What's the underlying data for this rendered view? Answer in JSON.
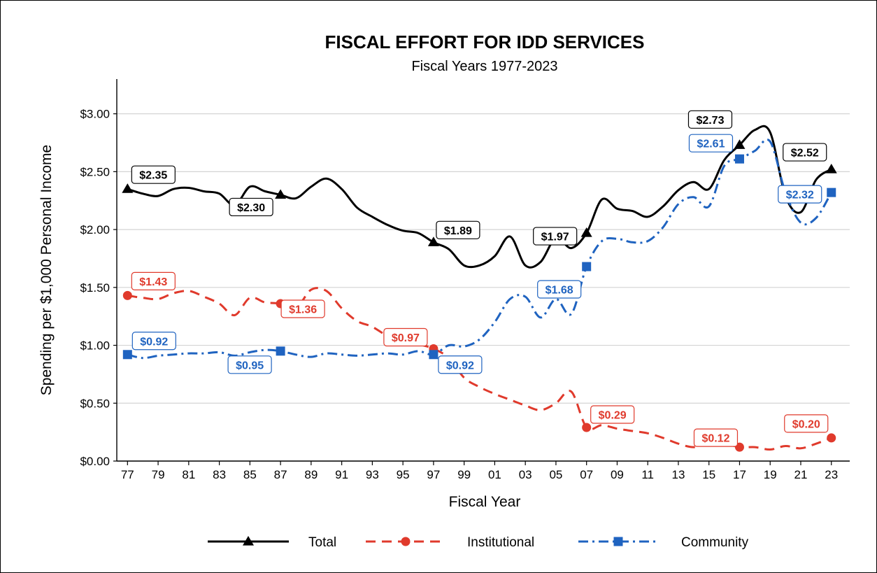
{
  "chart_data": {
    "type": "line",
    "title": "FISCAL EFFORT FOR IDD SERVICES",
    "subtitle": "Fiscal Years 1977-2023",
    "xlabel": "Fiscal Year",
    "ylabel": "Spending per $1,000 Personal Income",
    "xlim": [
      1976.3,
      2024.2
    ],
    "ylim": [
      0,
      3.3
    ],
    "x_ticks": [
      1977,
      1979,
      1981,
      1983,
      1985,
      1987,
      1989,
      1991,
      1993,
      1995,
      1997,
      1999,
      2001,
      2003,
      2005,
      2007,
      2009,
      2011,
      2013,
      2015,
      2017,
      2019,
      2021,
      2023
    ],
    "x_tick_labels": [
      "77",
      "79",
      "81",
      "83",
      "85",
      "87",
      "89",
      "91",
      "93",
      "95",
      "97",
      "99",
      "01",
      "03",
      "05",
      "07",
      "09",
      "11",
      "13",
      "15",
      "17",
      "19",
      "21",
      "23"
    ],
    "y_ticks": [
      0,
      0.5,
      1,
      1.5,
      2,
      2.5,
      3
    ],
    "y_tick_labels": [
      "$0.00",
      "$0.50",
      "$1.00",
      "$1.50",
      "$2.00",
      "$2.50",
      "$3.00"
    ],
    "grid": "horizontal",
    "legend_position": "bottom",
    "x": [
      1977,
      1978,
      1979,
      1980,
      1981,
      1982,
      1983,
      1984,
      1985,
      1986,
      1987,
      1988,
      1989,
      1990,
      1991,
      1992,
      1993,
      1994,
      1995,
      1996,
      1997,
      1998,
      1999,
      2000,
      2001,
      2002,
      2003,
      2004,
      2005,
      2006,
      2007,
      2008,
      2009,
      2010,
      2011,
      2012,
      2013,
      2014,
      2015,
      2016,
      2017,
      2018,
      2019,
      2020,
      2021,
      2022,
      2023
    ],
    "series": [
      {
        "name": "Total",
        "color": "#000000",
        "dash": "solid",
        "marker": "triangle",
        "values": [
          2.35,
          2.31,
          2.29,
          2.35,
          2.36,
          2.33,
          2.31,
          2.21,
          2.37,
          2.33,
          2.3,
          2.27,
          2.37,
          2.44,
          2.35,
          2.19,
          2.11,
          2.04,
          1.99,
          1.97,
          1.89,
          1.83,
          1.69,
          1.69,
          1.77,
          1.94,
          1.69,
          1.72,
          1.93,
          1.84,
          1.97,
          2.26,
          2.18,
          2.16,
          2.11,
          2.2,
          2.34,
          2.41,
          2.35,
          2.6,
          2.73,
          2.86,
          2.84,
          2.29,
          2.15,
          2.43,
          2.52
        ]
      },
      {
        "name": "Institutional",
        "color": "#e03a2c",
        "dash": "dashed",
        "marker": "circle",
        "values": [
          1.43,
          1.41,
          1.4,
          1.45,
          1.47,
          1.42,
          1.36,
          1.26,
          1.41,
          1.37,
          1.36,
          1.32,
          1.48,
          1.47,
          1.32,
          1.21,
          1.16,
          1.08,
          1.04,
          1.01,
          0.97,
          0.89,
          0.72,
          0.64,
          0.58,
          0.53,
          0.48,
          0.44,
          0.5,
          0.6,
          0.29,
          0.31,
          0.28,
          0.26,
          0.24,
          0.2,
          0.15,
          0.12,
          0.15,
          0.15,
          0.12,
          0.12,
          0.1,
          0.13,
          0.11,
          0.15,
          0.2
        ]
      },
      {
        "name": "Community",
        "color": "#1f63c0",
        "dash": "dashdot",
        "marker": "square",
        "values": [
          0.92,
          0.89,
          0.91,
          0.92,
          0.93,
          0.93,
          0.94,
          0.91,
          0.94,
          0.96,
          0.95,
          0.92,
          0.9,
          0.93,
          0.92,
          0.91,
          0.92,
          0.93,
          0.92,
          0.95,
          0.92,
          1.0,
          0.99,
          1.05,
          1.2,
          1.4,
          1.42,
          1.24,
          1.4,
          1.27,
          1.68,
          1.9,
          1.92,
          1.89,
          1.9,
          2.02,
          2.22,
          2.28,
          2.2,
          2.55,
          2.61,
          2.68,
          2.76,
          2.32,
          2.06,
          2.1,
          2.32
        ]
      }
    ],
    "markers": [
      {
        "series": "Total",
        "x": 1977,
        "y": 2.35
      },
      {
        "series": "Total",
        "x": 1987,
        "y": 2.3
      },
      {
        "series": "Total",
        "x": 1997,
        "y": 1.89
      },
      {
        "series": "Total",
        "x": 2007,
        "y": 1.97
      },
      {
        "series": "Total",
        "x": 2017,
        "y": 2.73
      },
      {
        "series": "Total",
        "x": 2023,
        "y": 2.52
      },
      {
        "series": "Institutional",
        "x": 1977,
        "y": 1.43
      },
      {
        "series": "Institutional",
        "x": 1987,
        "y": 1.36
      },
      {
        "series": "Institutional",
        "x": 1997,
        "y": 0.97
      },
      {
        "series": "Institutional",
        "x": 2007,
        "y": 0.29
      },
      {
        "series": "Institutional",
        "x": 2017,
        "y": 0.12
      },
      {
        "series": "Institutional",
        "x": 2023,
        "y": 0.2
      },
      {
        "series": "Community",
        "x": 1977,
        "y": 0.92
      },
      {
        "series": "Community",
        "x": 1987,
        "y": 0.95
      },
      {
        "series": "Community",
        "x": 1997,
        "y": 0.92
      },
      {
        "series": "Community",
        "x": 2007,
        "y": 1.68
      },
      {
        "series": "Community",
        "x": 2017,
        "y": 2.61
      },
      {
        "series": "Community",
        "x": 2023,
        "y": 2.32
      }
    ],
    "annotations": [
      {
        "series": "Total",
        "text": "$2.35",
        "x": 1977,
        "y": 2.35
      },
      {
        "series": "Total",
        "text": "$2.30",
        "x": 1987,
        "y": 2.3
      },
      {
        "series": "Total",
        "text": "$1.89",
        "x": 1997,
        "y": 1.89
      },
      {
        "series": "Total",
        "text": "$1.97",
        "x": 2007,
        "y": 1.97
      },
      {
        "series": "Total",
        "text": "$2.73",
        "x": 2017,
        "y": 2.73
      },
      {
        "series": "Total",
        "text": "$2.52",
        "x": 2023,
        "y": 2.52
      },
      {
        "series": "Institutional",
        "text": "$1.43",
        "x": 1977,
        "y": 1.43
      },
      {
        "series": "Institutional",
        "text": "$1.36",
        "x": 1987,
        "y": 1.36
      },
      {
        "series": "Institutional",
        "text": "$0.97",
        "x": 1997,
        "y": 0.97
      },
      {
        "series": "Institutional",
        "text": "$0.29",
        "x": 2007,
        "y": 0.29
      },
      {
        "series": "Institutional",
        "text": "$0.12",
        "x": 2017,
        "y": 0.12
      },
      {
        "series": "Institutional",
        "text": "$0.20",
        "x": 2023,
        "y": 0.2
      },
      {
        "series": "Community",
        "text": "$0.92",
        "x": 1977,
        "y": 0.92
      },
      {
        "series": "Community",
        "text": "$0.95",
        "x": 1987,
        "y": 0.95
      },
      {
        "series": "Community",
        "text": "$0.92",
        "x": 1997,
        "y": 0.92
      },
      {
        "series": "Community",
        "text": "$1.68",
        "x": 2007,
        "y": 1.68
      },
      {
        "series": "Community",
        "text": "$2.61",
        "x": 2017,
        "y": 2.61
      },
      {
        "series": "Community",
        "text": "$2.32",
        "x": 2023,
        "y": 2.32
      }
    ]
  }
}
